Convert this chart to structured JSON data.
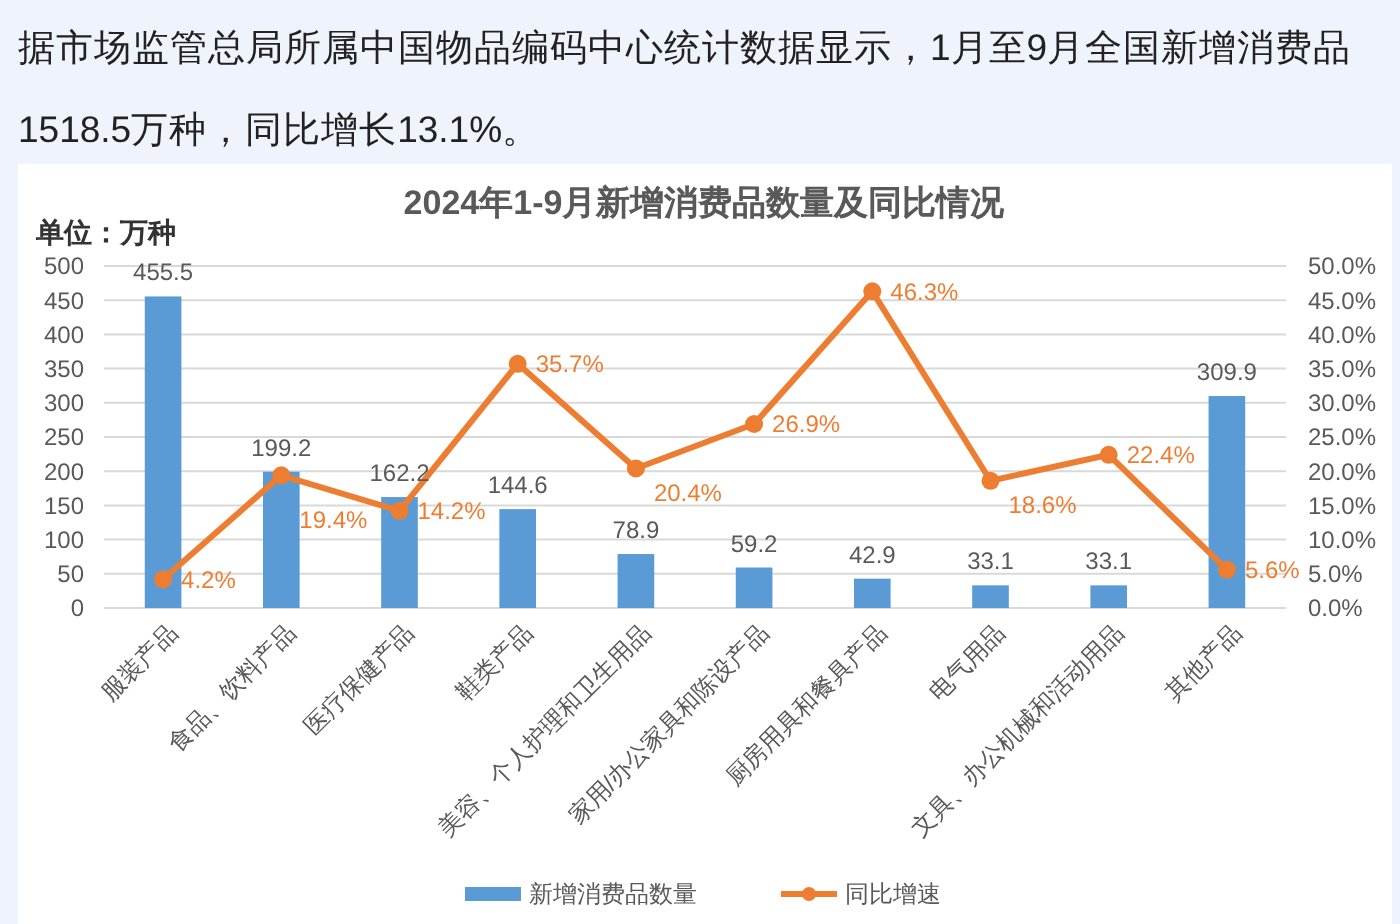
{
  "chart_data": {
    "type": "bar",
    "title": "2024年1-9月新增消费品数量及同比情况",
    "ylabel": "单位：万种",
    "annotations": [
      "据市场监管总局所属中国物品编码中心统计数据显示，1月至9月全国新增消费品1518.5万种，同比增长13.1%。"
    ],
    "categories": [
      "服装产品",
      "食品、饮料产品",
      "医疗保健产品",
      "鞋类产品",
      "美容、个人护理和卫生用品",
      "家用/办公家具和陈设产品",
      "厨房用具和餐具产品",
      "电气用品",
      "文具、办公机械和活动用品",
      "其他产品"
    ],
    "series": [
      {
        "name": "新增消费品数量",
        "color": "#5b9bd5",
        "values": [
          455.5,
          199.2,
          162.2,
          144.6,
          78.9,
          59.2,
          42.9,
          33.1,
          33.1,
          309.9
        ],
        "value_labels": [
          "455.5",
          "199.2",
          "162.2",
          "144.6",
          "78.9",
          "59.2",
          "42.9",
          "33.1",
          "33.1",
          "309.9"
        ]
      },
      {
        "name": "同比增速",
        "type": "line",
        "axis": "y2",
        "color": "#ed7d31",
        "marker": "circle",
        "values": [
          4.2,
          19.4,
          14.2,
          35.7,
          20.4,
          26.9,
          46.3,
          18.6,
          22.4,
          5.6
        ],
        "value_labels": [
          "4.2%",
          "19.4%",
          "14.2%",
          "35.7%",
          "20.4%",
          "26.9%",
          "46.3%",
          "18.6%",
          "22.4%",
          "5.6%"
        ]
      }
    ],
    "ylim": [
      0,
      500
    ],
    "yticks": [
      0,
      50,
      100,
      150,
      200,
      250,
      300,
      350,
      400,
      450,
      500
    ],
    "y2lim": [
      0,
      50
    ],
    "y2ticks": [
      {
        "value": 0,
        "label": "0.0%"
      },
      {
        "value": 5,
        "label": "5.0%"
      },
      {
        "value": 10,
        "label": "10.0%"
      },
      {
        "value": 15,
        "label": "15.0%"
      },
      {
        "value": 20,
        "label": "20.0%"
      },
      {
        "value": 25,
        "label": "25.0%"
      },
      {
        "value": 30,
        "label": "30.0%"
      },
      {
        "value": 35,
        "label": "35.0%"
      },
      {
        "value": 40,
        "label": "40.0%"
      },
      {
        "value": 45,
        "label": "45.0%"
      },
      {
        "value": 50,
        "label": "50.0%"
      }
    ],
    "grid": "y",
    "legend": "bottom"
  }
}
